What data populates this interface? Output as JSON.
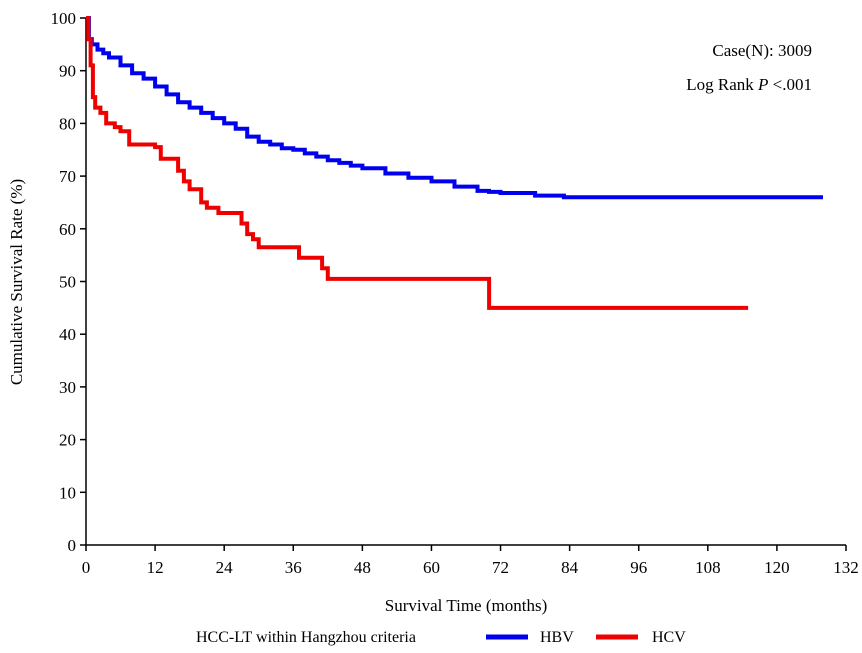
{
  "chart_data": {
    "type": "line",
    "xlabel": "Survival Time (months)",
    "ylabel": "Cumulative Survival Rate (%)",
    "xlim": [
      0,
      132
    ],
    "ylim": [
      0,
      100
    ],
    "xticks": [
      0,
      12,
      24,
      36,
      48,
      60,
      72,
      84,
      96,
      108,
      120,
      132
    ],
    "yticks": [
      0,
      10,
      20,
      30,
      40,
      50,
      60,
      70,
      80,
      90,
      100
    ],
    "grid": false,
    "legend": {
      "title": "HCC-LT within Hangzhou criteria",
      "placement": "bottom"
    },
    "annotations": {
      "case_label": "Case(N): 3009",
      "logrank_prefix": "Log Rank ",
      "logrank_p": "P",
      "logrank_suffix": " <.001"
    },
    "series": [
      {
        "name": "HBV",
        "color": "#0000ee",
        "x": [
          0,
          0.5,
          1,
          2,
          3,
          4,
          6,
          8,
          10,
          12,
          14,
          16,
          18,
          20,
          22,
          24,
          26,
          28,
          30,
          32,
          34,
          36,
          38,
          40,
          42,
          44,
          46,
          48,
          52,
          56,
          60,
          64,
          68,
          70,
          72,
          78,
          83,
          90,
          100,
          110,
          120,
          128
        ],
        "y": [
          100,
          96,
          95,
          94,
          93.3,
          92.5,
          91,
          89.5,
          88.5,
          87,
          85.5,
          84,
          83,
          82,
          81,
          80,
          79,
          77.5,
          76.5,
          76,
          75.3,
          75,
          74.3,
          73.7,
          73,
          72.5,
          72,
          71.5,
          70.5,
          69.7,
          69,
          68,
          67.2,
          67,
          66.8,
          66.3,
          66,
          66,
          66,
          66,
          66,
          66
        ]
      },
      {
        "name": "HCV",
        "color": "#ee0000",
        "x": [
          0,
          0.4,
          0.8,
          1.2,
          1.6,
          2.5,
          3.5,
          5,
          6,
          7.5,
          10,
          12,
          13,
          16,
          17,
          18,
          20,
          21,
          23,
          27,
          28,
          29,
          30,
          32,
          35,
          37,
          39,
          41,
          42,
          43,
          48,
          60,
          70,
          70.01,
          80,
          100,
          115
        ],
        "y": [
          100,
          96,
          91,
          85,
          83,
          82,
          80,
          79.3,
          78.5,
          76,
          76,
          75.5,
          73.3,
          71,
          69,
          67.5,
          65,
          64,
          63,
          61,
          59,
          58,
          56.5,
          56.5,
          56.5,
          54.5,
          54.5,
          52.5,
          50.5,
          50.5,
          50.5,
          50.5,
          50.5,
          45,
          45,
          45,
          45
        ]
      }
    ]
  }
}
